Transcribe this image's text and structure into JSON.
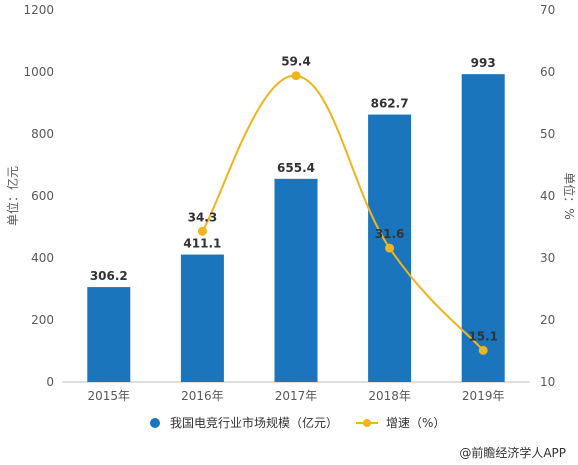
{
  "chart_data": {
    "type": "bar",
    "categories": [
      "2015年",
      "2016年",
      "2017年",
      "2018年",
      "2019年"
    ],
    "series": [
      {
        "name": "我国电竞行业市场规模（亿元）",
        "type": "bar",
        "axis": "left",
        "color": "#1a75bd",
        "values": [
          306.2,
          411.1,
          655.4,
          862.7,
          993
        ]
      },
      {
        "name": "增速（%）",
        "type": "line",
        "axis": "right",
        "color": "#f0b41c",
        "values": [
          null,
          34.3,
          59.4,
          31.6,
          15.1
        ]
      }
    ],
    "ylabel": "单位：亿元",
    "y2label": "单位：%",
    "ylim": [
      0,
      1200
    ],
    "y2lim": [
      10,
      70
    ],
    "yticks": [
      "0",
      "200",
      "400",
      "600",
      "800",
      "1000",
      "1200"
    ],
    "y2ticks": [
      "10",
      "20",
      "30",
      "40",
      "50",
      "60",
      "70"
    ],
    "bar_labels": [
      "306.2",
      "411.1",
      "655.4",
      "862.7",
      "993"
    ],
    "line_labels": [
      "",
      "34.3",
      "59.4",
      "31.6",
      "15.1"
    ],
    "legend_position": "bottom",
    "grid": false
  },
  "legend": {
    "bar_label": "我国电竞行业市场规模（亿元）",
    "line_label": "增速（%）"
  },
  "source": {
    "text": "@前瞻经济学人APP"
  }
}
